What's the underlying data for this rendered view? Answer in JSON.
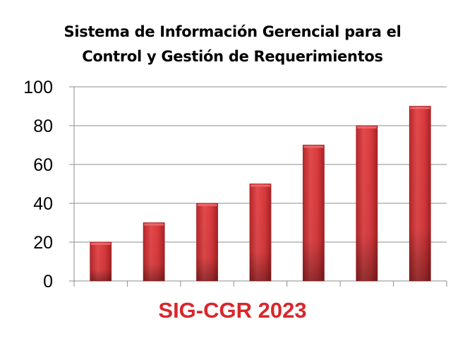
{
  "chart_data": {
    "type": "bar",
    "title_lines": [
      "Sistema de Información Gerencial para el",
      "Control y Gestión de Requerimientos"
    ],
    "categories": [
      "",
      "",
      "",
      "",
      "",
      "",
      ""
    ],
    "values": [
      20,
      30,
      40,
      50,
      70,
      80,
      90
    ],
    "ylim": [
      0,
      100
    ],
    "yticks": [
      0,
      20,
      40,
      60,
      80,
      100
    ],
    "ytick_labels": [
      "0",
      "20",
      "40",
      "60",
      "80",
      "100"
    ],
    "grid": true,
    "legend": "none",
    "xlabel": "",
    "ylabel": "",
    "bar_color": "#d9393b",
    "bar_shadow_color": "#a52124"
  },
  "footer": {
    "text": "SIG-CGR 2023",
    "color": "#d9262b"
  }
}
